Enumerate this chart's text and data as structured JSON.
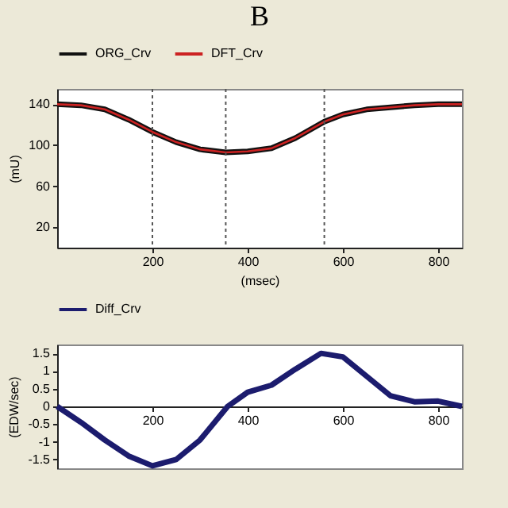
{
  "chart_data": [
    {
      "type": "line",
      "title": "B",
      "xlabel": "(msec)",
      "ylabel": "(mU)",
      "x": [
        0,
        50,
        100,
        150,
        200,
        250,
        300,
        354,
        400,
        450,
        500,
        561,
        600,
        650,
        700,
        750,
        800,
        850
      ],
      "series": [
        {
          "name": "ORG_Crv",
          "color": "#111111",
          "values": [
            140,
            139,
            135,
            125,
            113,
            103,
            96,
            93,
            94,
            97,
            107,
            123,
            130,
            135,
            137,
            139,
            140,
            140
          ]
        },
        {
          "name": "DFT_Crv",
          "color": "#cc2222",
          "values": [
            140,
            139,
            135,
            125,
            113,
            103,
            96,
            93,
            94,
            97,
            107,
            123,
            130,
            135,
            137,
            139,
            140,
            140
          ]
        }
      ],
      "xlim": [
        0,
        850
      ],
      "xticks": [
        200,
        400,
        600,
        800
      ],
      "ylim": [
        0,
        155
      ],
      "yticks": [
        20,
        60,
        100,
        140
      ],
      "grid": false,
      "legend": "top",
      "line_style": "solid",
      "ref_lines": [
        {
          "axis": "x",
          "value": 200,
          "color": "#555555",
          "line_style": "dotted"
        },
        {
          "axis": "x",
          "value": 354,
          "color": "#555555",
          "line_style": "dotted"
        },
        {
          "axis": "x",
          "value": 561,
          "color": "#555555",
          "line_style": "dotted"
        }
      ]
    },
    {
      "type": "line",
      "ylabel": "(EDW/sec)",
      "x": [
        0,
        50,
        100,
        150,
        200,
        250,
        300,
        358,
        400,
        450,
        500,
        554,
        600,
        650,
        700,
        750,
        800,
        850
      ],
      "series": [
        {
          "name": "Diff_Crv",
          "color": "#1c1c6e",
          "values": [
            0,
            -0.45,
            -0.95,
            -1.4,
            -1.68,
            -1.5,
            -0.95,
            0,
            0.4,
            0.6,
            1.05,
            1.5,
            1.4,
            0.85,
            0.3,
            0.13,
            0.15,
            0
          ]
        }
      ],
      "xlim": [
        0,
        850
      ],
      "xticks": [
        200,
        400,
        600,
        800
      ],
      "ylim": [
        -1.75,
        1.75
      ],
      "yticks": [
        {
          "value": -1.5,
          "label": "-1.5"
        },
        {
          "value": -1,
          "label": "-1"
        },
        {
          "value": -0.5,
          "label": "-0.5"
        },
        0,
        0.5,
        1,
        1.5
      ],
      "grid": false,
      "legend": "top",
      "line_style": "solid"
    }
  ]
}
